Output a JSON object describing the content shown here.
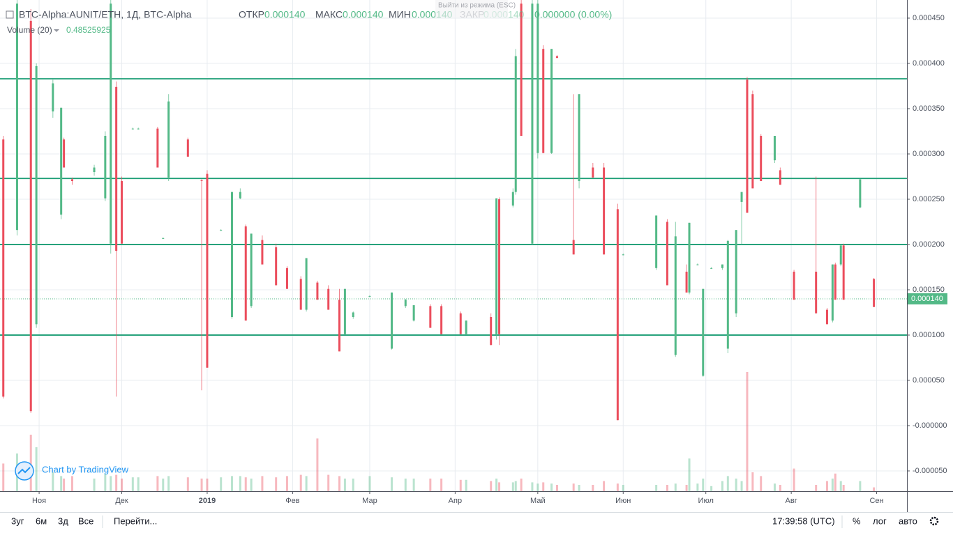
{
  "header": {
    "symbol": "BTC-Alpha:AUNIT/ETH, 1Д, BTC-Alpha",
    "open_label": "ОТКР",
    "open": "0.000140",
    "high_label": "МАКС",
    "high": "0.000140",
    "low_label": "МИН",
    "low": "0.000140",
    "close_label": "ЗАКР",
    "close": "0.000140",
    "change": "0.000000 (0.00%)",
    "volume_label": "Volume (20)",
    "volume_value": "0.48525925",
    "tooltip": "Выйти из режима (ESC)",
    "watermark": "Chart by TradingView"
  },
  "toolbar": {
    "ranges": [
      "3уг",
      "6м",
      "3д",
      "Все"
    ],
    "goto": "Перейти...",
    "time": "17:39:58 (UTC)",
    "percent": "%",
    "log": "лог",
    "auto": "авто"
  },
  "chart_data": {
    "type": "candlestick",
    "up_color": "#53b987",
    "down_color": "#eb4d5c",
    "level_color": "#26a27b",
    "grid": true,
    "xlim": [
      -14.2,
      315
    ],
    "xticks": [
      {
        "value": 0,
        "label": "Ноя"
      },
      {
        "value": 30,
        "label": "Дек"
      },
      {
        "value": 61,
        "label": "2019"
      },
      {
        "value": 92,
        "label": "Фев"
      },
      {
        "value": 120,
        "label": "Мар"
      },
      {
        "value": 151,
        "label": "Апр"
      },
      {
        "value": 181,
        "label": "Май"
      },
      {
        "value": 212,
        "label": "Июн"
      },
      {
        "value": 242,
        "label": "Июл"
      },
      {
        "value": 273,
        "label": "Авг"
      },
      {
        "value": 304,
        "label": "Сен"
      }
    ],
    "ylim": [
      -7.23e-05,
      0.00047
    ],
    "yticks": [
      {
        "value": 0.00045,
        "label": "0.000450"
      },
      {
        "value": 0.0004,
        "label": "0.000400"
      },
      {
        "value": 0.00035,
        "label": "0.000350"
      },
      {
        "value": 0.0003,
        "label": "0.000300"
      },
      {
        "value": 0.00025,
        "label": "0.000250"
      },
      {
        "value": 0.0002,
        "label": "0.000200"
      },
      {
        "value": 0.00015,
        "label": "0.000150"
      },
      {
        "value": 0.0001,
        "label": "0.000100"
      },
      {
        "value": 5e-05,
        "label": "0.000050"
      },
      {
        "value": 0,
        "label": "-0.000000"
      },
      {
        "value": -5e-05,
        "label": "-0.000050"
      }
    ],
    "levels": [
      0.000383,
      0.000273,
      0.0002,
      0.0001
    ],
    "last_price": {
      "value": 0.00014,
      "label": "0.000140"
    },
    "volume_lim": [
      0,
      1
    ],
    "x": [
      -13,
      -8,
      -3,
      -1,
      5,
      8,
      9,
      12,
      20,
      24,
      26,
      28,
      30,
      34,
      36,
      43,
      45,
      47,
      54,
      59,
      61,
      66,
      70,
      73,
      75,
      77,
      81,
      86,
      90,
      95,
      97,
      101,
      105,
      109,
      111,
      114,
      120,
      128,
      133,
      136,
      142,
      146,
      153,
      155,
      164,
      166,
      167,
      172,
      173,
      175,
      179,
      181,
      183,
      186,
      188,
      194,
      196,
      201,
      205,
      210,
      212,
      224,
      228,
      231,
      235,
      236,
      239,
      241,
      244,
      248,
      250,
      253,
      255,
      257,
      259,
      262,
      267,
      269,
      274,
      282,
      286,
      288,
      289,
      291,
      292,
      298,
      303
    ],
    "ohlc": [
      [
        0.000316,
        0.00032,
        3e-05,
        3.2e-05
      ],
      [
        0.000216,
        0.00047,
        0.00021,
        0.000466
      ],
      [
        0.000447,
        0.00046,
        1.4e-05,
        1.6e-05
      ],
      [
        0.000112,
        0.0004,
        0.000108,
        0.000397
      ],
      [
        0.000347,
        0.000382,
        0.00034,
        0.000378
      ],
      [
        0.000233,
        0.000351,
        0.000228,
        0.000351
      ],
      [
        0.000316,
        0.000318,
        0.000285,
        0.000285
      ],
      [
        0.000272,
        0.000274,
        0.000266,
        0.00027
      ],
      [
        0.00028,
        0.000288,
        0.000276,
        0.000285
      ],
      [
        0.000251,
        0.000325,
        0.000248,
        0.00032
      ],
      [
        0.000201,
        0.00047,
        0.00019,
        0.000466
      ],
      [
        0.000374,
        0.00038,
        3.2e-05,
        0.000193
      ],
      [
        0.00027,
        0.000275,
        0.000201,
        0.000201
      ],
      [
        0.000328,
        0.000329,
        0.000327,
        0.000328
      ],
      [
        0.000328,
        0.000329,
        0.000327,
        0.000328
      ],
      [
        0.000328,
        0.00033,
        0.000285,
        0.000285
      ],
      [
        0.000207,
        0.000208,
        0.000206,
        0.000207
      ],
      [
        0.000274,
        0.000366,
        0.00027,
        0.000358
      ],
      [
        0.000316,
        0.000318,
        0.000297,
        0.000297
      ],
      [
        0.000271,
        0.000272,
        3.9e-05,
        0.00027
      ],
      [
        0.000278,
        0.000282,
        6.4e-05,
        6.4e-05
      ],
      [
        0.000216,
        0.000217,
        0.000215,
        0.000216
      ],
      [
        0.00012,
        0.000258,
        0.000118,
        0.000258
      ],
      [
        0.000251,
        0.000262,
        0.00025,
        0.000258
      ],
      [
        0.00022,
        0.000222,
        0.000116,
        0.000116
      ],
      [
        0.000132,
        0.000212,
        0.00013,
        0.000212
      ],
      [
        0.000205,
        0.00021,
        0.000178,
        0.000178
      ],
      [
        0.000197,
        0.000201,
        0.000155,
        0.000155
      ],
      [
        0.000174,
        0.000176,
        0.000151,
        0.000151
      ],
      [
        0.000162,
        0.000165,
        0.000128,
        0.000128
      ],
      [
        0.000128,
        0.000185,
        0.000126,
        0.000185
      ],
      [
        0.000158,
        0.00016,
        0.000139,
        0.000139
      ],
      [
        0.000151,
        0.000155,
        0.000128,
        0.000128
      ],
      [
        0.000139,
        0.000151,
        8.2e-05,
        8.2e-05
      ],
      [
        0.000101,
        0.000151,
        0.0001,
        0.000151
      ],
      [
        0.00012,
        0.000126,
        0.000118,
        0.000125
      ],
      [
        0.000143,
        0.000144,
        0.000142,
        0.000143
      ],
      [
        8.5e-05,
        0.000147,
        8.4e-05,
        0.000147
      ],
      [
        0.000132,
        0.00014,
        0.00013,
        0.000139
      ],
      [
        0.000116,
        0.000133,
        0.000115,
        0.000133
      ],
      [
        0.000132,
        0.000134,
        0.000108,
        0.000108
      ],
      [
        0.000132,
        0.000134,
        0.000101,
        0.000101
      ],
      [
        0.000124,
        0.000126,
        0.000101,
        0.000101
      ],
      [
        0.000101,
        0.000116,
        0.0001,
        0.000116
      ],
      [
        0.00012,
        0.000124,
        8.9e-05,
        8.9e-05
      ],
      [
        0.000101,
        0.000251,
        9.5e-05,
        0.000251
      ],
      [
        0.00025,
        0.000252,
        8.9e-05,
        0.000101
      ],
      [
        0.000243,
        0.000262,
        0.000241,
        0.000258
      ],
      [
        0.000258,
        0.000416,
        0.000255,
        0.000408
      ],
      [
        0.000466,
        0.00047,
        0.00032,
        0.00032
      ],
      [
        0.000201,
        0.00047,
        0.0002,
        0.000466
      ],
      [
        0.000301,
        0.00047,
        0.000295,
        0.000466
      ],
      [
        0.000416,
        0.00042,
        0.000301,
        0.000301
      ],
      [
        0.000301,
        0.000416,
        0.0003,
        0.000416
      ],
      [
        0.000408,
        0.000409,
        0.000406,
        0.000406
      ],
      [
        0.000205,
        0.000366,
        0.000189,
        0.000189
      ],
      [
        0.00027,
        0.000366,
        0.000262,
        0.000366
      ],
      [
        0.000285,
        0.00029,
        0.000274,
        0.000274
      ],
      [
        0.000285,
        0.00029,
        0.000189,
        0.000189
      ],
      [
        0.000239,
        0.000245,
        6e-06,
        6e-06
      ],
      [
        0.000189,
        0.00019,
        0.000188,
        0.000189
      ],
      [
        0.000174,
        0.000232,
        0.000172,
        0.000232
      ],
      [
        0.000225,
        0.000228,
        0.000155,
        0.000155
      ],
      [
        7.8e-05,
        0.000225,
        7.6e-05,
        0.000209
      ],
      [
        0.00017,
        0.000178,
        0.000147,
        0.000147
      ],
      [
        0.000147,
        0.000224,
        0.000145,
        0.000224
      ],
      [
        0.000178,
        0.000179,
        0.000177,
        0.000178
      ],
      [
        5.5e-05,
        0.000151,
        5.4e-05,
        0.000151
      ],
      [
        0.000174,
        0.000175,
        0.000173,
        0.000174
      ],
      [
        0.000174,
        0.000178,
        0.000172,
        0.000178
      ],
      [
        8.5e-05,
        0.000205,
        8e-05,
        0.000204
      ],
      [
        0.000124,
        0.000216,
        0.00012,
        0.000216
      ],
      [
        0.000247,
        0.000258,
        0.0002,
        0.000258
      ],
      [
        0.000382,
        0.000385,
        0.000235,
        0.000235
      ],
      [
        0.000366,
        0.00037,
        0.000262,
        0.000262
      ],
      [
        0.00032,
        0.000322,
        0.00027,
        0.00027
      ],
      [
        0.000293,
        0.00032,
        0.00029,
        0.00032
      ],
      [
        0.000282,
        0.000285,
        0.000266,
        0.000266
      ],
      [
        0.00017,
        0.000172,
        0.000139,
        0.000139
      ],
      [
        0.00017,
        0.000275,
        0.000124,
        0.000124
      ],
      [
        0.000128,
        0.00013,
        0.000112,
        0.000112
      ],
      [
        0.000116,
        0.000178,
        0.000114,
        0.000178
      ],
      [
        0.000178,
        0.00018,
        0.000139,
        0.000139
      ],
      [
        0.000178,
        0.000199,
        0.000176,
        0.000199
      ],
      [
        0.000199,
        0.000201,
        0.000139,
        0.000139
      ],
      [
        0.000241,
        0.000272,
        0.00024,
        0.000272
      ],
      [
        0.000162,
        0.000163,
        0.000131,
        0.000131
      ]
    ],
    "volume": [
      0.22,
      0.3,
      0.45,
      0.35,
      0.15,
      0.12,
      0.1,
      0.12,
      0.1,
      0.14,
      0.12,
      0.13,
      0.1,
      0.11,
      0.11,
      0.12,
      0.1,
      0.12,
      0.11,
      0.1,
      0.1,
      0.11,
      0.12,
      0.12,
      0.11,
      0.1,
      0.12,
      0.11,
      0.12,
      0.13,
      0.12,
      0.42,
      0.13,
      0.12,
      0.1,
      0.1,
      0.12,
      0.11,
      0.1,
      0.1,
      0.1,
      0.1,
      0.09,
      0.09,
      0.08,
      0.1,
      0.07,
      0.07,
      0.08,
      0.1,
      0.07,
      0.06,
      0.07,
      0.06,
      0.05,
      0.06,
      0.05,
      0.05,
      0.08,
      0.06,
      0.05,
      0.05,
      0.05,
      0.06,
      0.05,
      0.26,
      0.06,
      0.1,
      0.04,
      0.08,
      0.12,
      0.1,
      0.08,
      0.95,
      0.15,
      0.12,
      0.06,
      0.05,
      0.18,
      0.05,
      0.08,
      0.1,
      0.14,
      0.08,
      0.05,
      0.08,
      0.03
    ]
  }
}
